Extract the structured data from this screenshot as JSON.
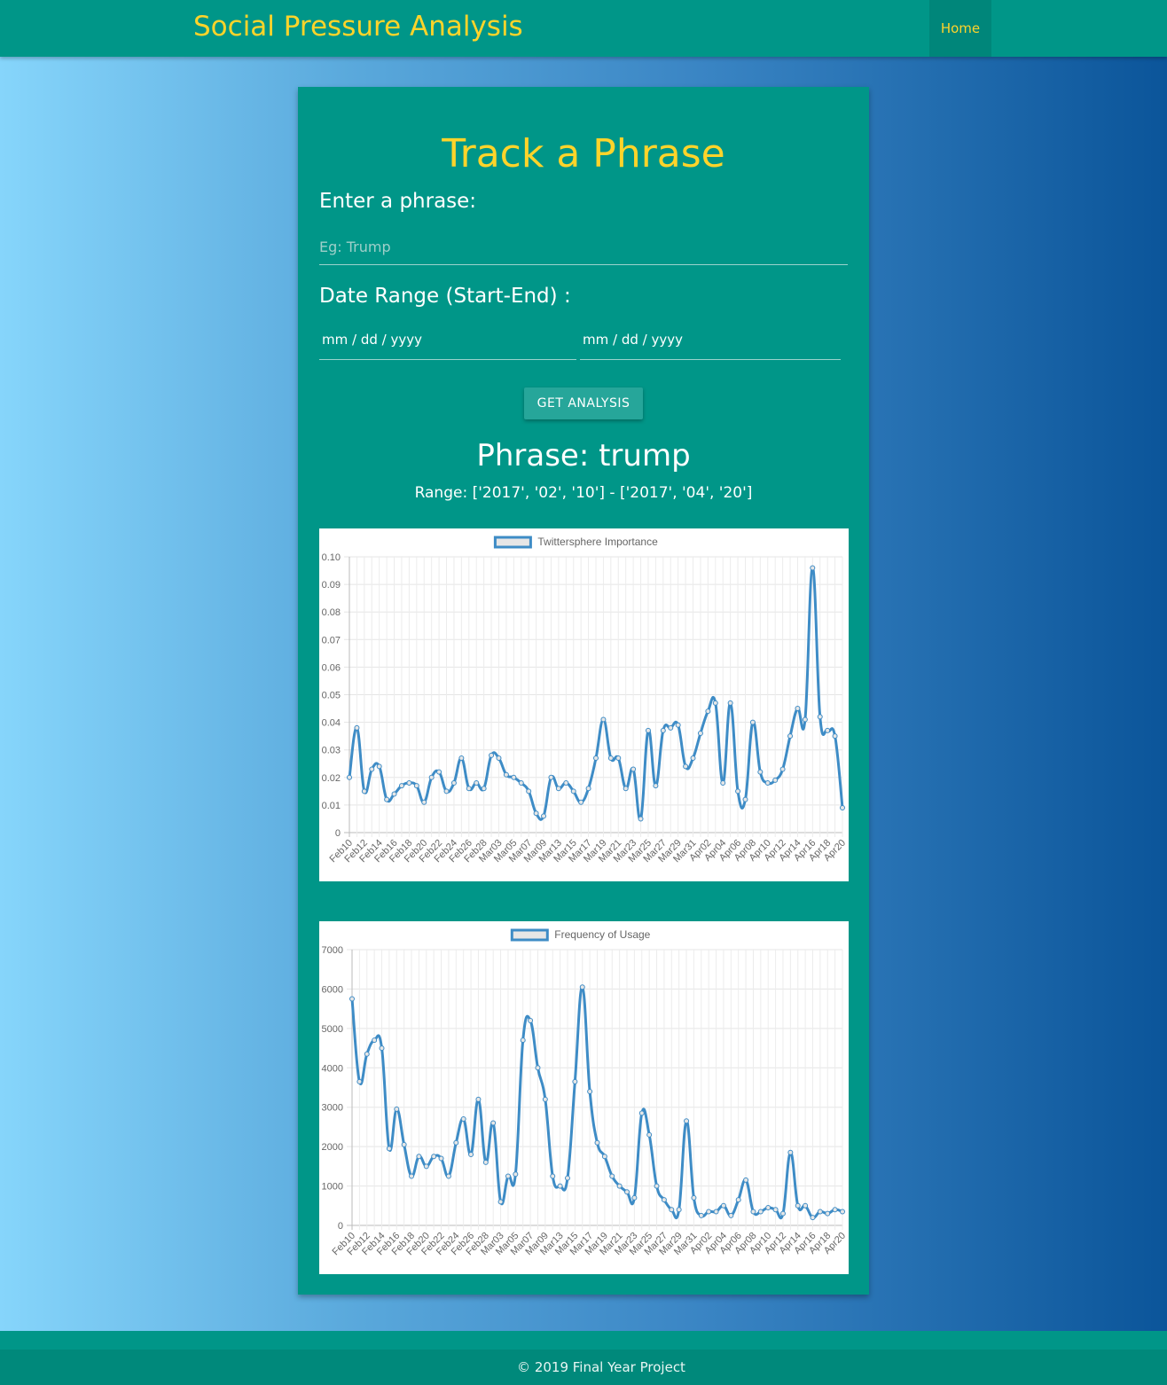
{
  "header": {
    "brand": "Social Pressure Analysis",
    "nav_home": "Home"
  },
  "form": {
    "title": "Track a Phrase",
    "phrase_label": "Enter a phrase:",
    "phrase_placeholder": "Eg: Trump",
    "phrase_value": "",
    "date_label": "Date Range (Start-End) :",
    "start_date": "mm / dd / yyyy",
    "end_date": "mm / dd / yyyy",
    "submit_label": "GET ANALYSIS"
  },
  "result": {
    "title": "Phrase: trump",
    "range": "Range: ['2017', '02', '10'] - ['2017', '04', '20']"
  },
  "colors": {
    "line": "#3e8cc6",
    "accent": "#ffd42a",
    "card": "#009688"
  },
  "chart_data": [
    {
      "type": "line",
      "legend": "Twittersphere Importance",
      "legend_position": "top",
      "ylim": [
        0,
        0.1
      ],
      "yticks": [
        "0",
        "0.01",
        "0.02",
        "0.03",
        "0.04",
        "0.05",
        "0.06",
        "0.07",
        "0.08",
        "0.09",
        "0.10"
      ],
      "xticks": [
        "Feb10",
        "Feb12",
        "Feb14",
        "Feb16",
        "Feb18",
        "Feb20",
        "Feb22",
        "Feb24",
        "Feb26",
        "Feb28",
        "Mar03",
        "Mar05",
        "Mar07",
        "Mar09",
        "Mar13",
        "Mar15",
        "Mar17",
        "Mar19",
        "Mar21",
        "Mar23",
        "Mar25",
        "Mar27",
        "Mar29",
        "Mar31",
        "Apr02",
        "Apr04",
        "Apr06",
        "Apr08",
        "Apr10",
        "Apr12",
        "Apr14",
        "Apr16",
        "Apr18",
        "Apr20"
      ],
      "grid": true,
      "values": [
        0.02,
        0.038,
        0.015,
        0.023,
        0.024,
        0.012,
        0.014,
        0.017,
        0.018,
        0.017,
        0.011,
        0.02,
        0.022,
        0.015,
        0.018,
        0.027,
        0.016,
        0.018,
        0.016,
        0.028,
        0.027,
        0.021,
        0.02,
        0.018,
        0.015,
        0.007,
        0.006,
        0.02,
        0.016,
        0.018,
        0.015,
        0.011,
        0.016,
        0.027,
        0.041,
        0.027,
        0.027,
        0.016,
        0.023,
        0.005,
        0.037,
        0.017,
        0.037,
        0.038,
        0.039,
        0.024,
        0.027,
        0.036,
        0.044,
        0.047,
        0.018,
        0.047,
        0.015,
        0.012,
        0.04,
        0.022,
        0.018,
        0.019,
        0.023,
        0.035,
        0.045,
        0.041,
        0.096,
        0.042,
        0.037,
        0.035,
        0.009
      ]
    },
    {
      "type": "line",
      "legend": "Frequency of Usage",
      "legend_position": "top",
      "ylim": [
        0,
        7000
      ],
      "yticks": [
        "0",
        "1000",
        "2000",
        "3000",
        "4000",
        "5000",
        "6000",
        "7000"
      ],
      "xticks": [
        "Feb10",
        "Feb12",
        "Feb14",
        "Feb16",
        "Feb18",
        "Feb20",
        "Feb22",
        "Feb24",
        "Feb26",
        "Feb28",
        "Mar03",
        "Mar05",
        "Mar07",
        "Mar09",
        "Mar13",
        "Mar15",
        "Mar17",
        "Mar19",
        "Mar21",
        "Mar23",
        "Mar25",
        "Mar27",
        "Mar29",
        "Mar31",
        "Apr02",
        "Apr04",
        "Apr06",
        "Apr08",
        "Apr10",
        "Apr12",
        "Apr14",
        "Apr16",
        "Apr18",
        "Apr20"
      ],
      "grid": true,
      "values": [
        5750,
        3650,
        4350,
        4700,
        4500,
        1950,
        2950,
        2050,
        1250,
        1750,
        1500,
        1750,
        1700,
        1250,
        2100,
        2700,
        1800,
        3200,
        1600,
        2600,
        600,
        1250,
        1300,
        4700,
        5200,
        4000,
        3200,
        1250,
        1000,
        1200,
        3650,
        6050,
        3400,
        2100,
        1750,
        1250,
        1000,
        850,
        700,
        2850,
        2300,
        1000,
        650,
        400,
        400,
        2650,
        700,
        250,
        350,
        350,
        500,
        250,
        650,
        1150,
        350,
        350,
        450,
        400,
        300,
        1850,
        500,
        500,
        200,
        350,
        300,
        400,
        350
      ]
    }
  ],
  "footer": {
    "text": "© 2019 Final Year Project"
  }
}
